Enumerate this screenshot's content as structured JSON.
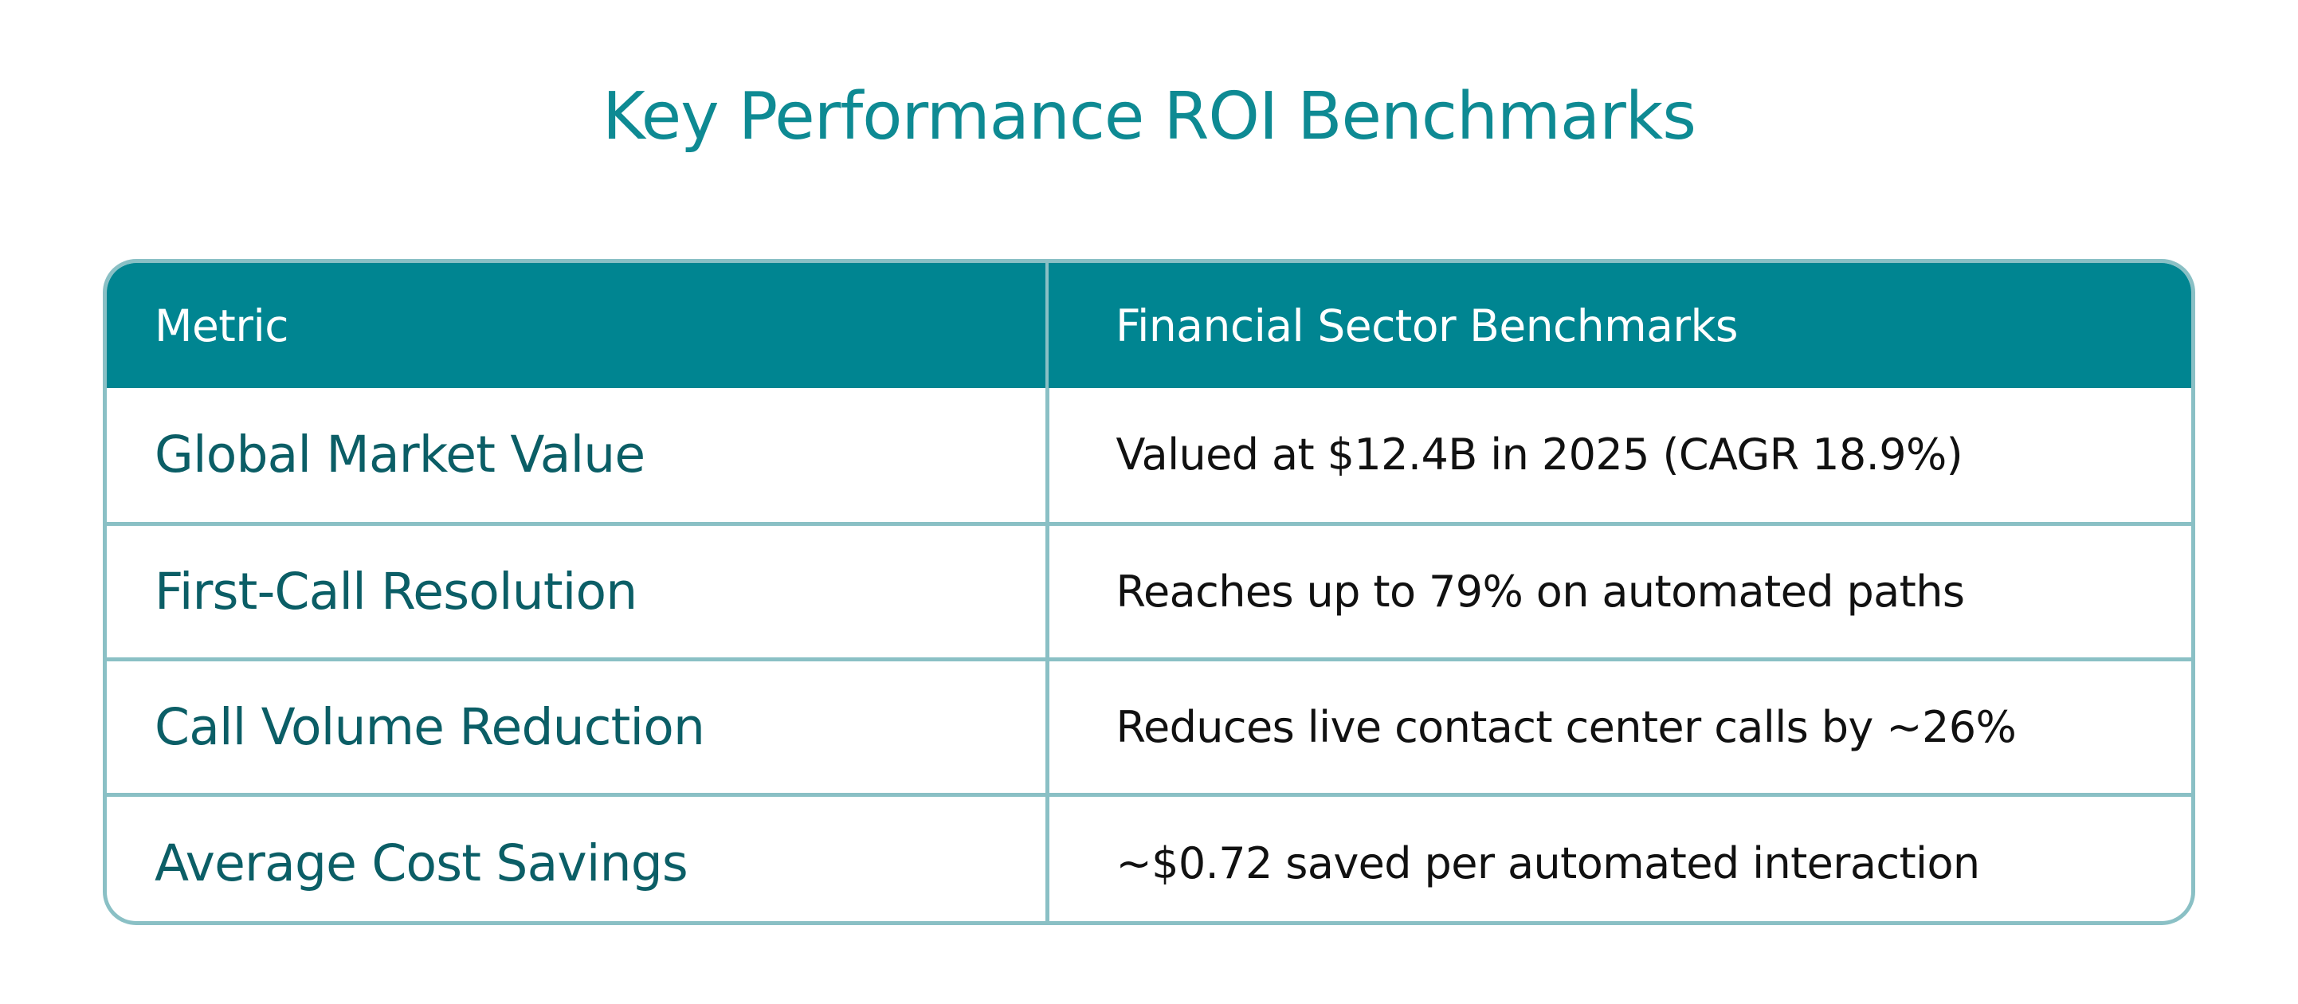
{
  "title": "Key Performance ROI Benchmarks",
  "table": {
    "headers": [
      "Metric",
      "Financial Sector Benchmarks"
    ],
    "rows": [
      {
        "metric": "Global Market Value",
        "benchmark": "Valued at $12.4B in 2025 (CAGR 18.9%)"
      },
      {
        "metric": "First-Call Resolution",
        "benchmark": "Reaches up to 79% on automated paths"
      },
      {
        "metric": "Call Volume Reduction",
        "benchmark": "Reduces live contact center calls by ~26%"
      },
      {
        "metric": "Average Cost Savings",
        "benchmark": "~$0.72 saved per automated interaction"
      }
    ]
  },
  "colors": {
    "title": "#0e8a93",
    "header_bg": "#008591",
    "header_text": "#ffffff",
    "metric_text": "#0b5e66",
    "border": "#8ac0c5"
  }
}
